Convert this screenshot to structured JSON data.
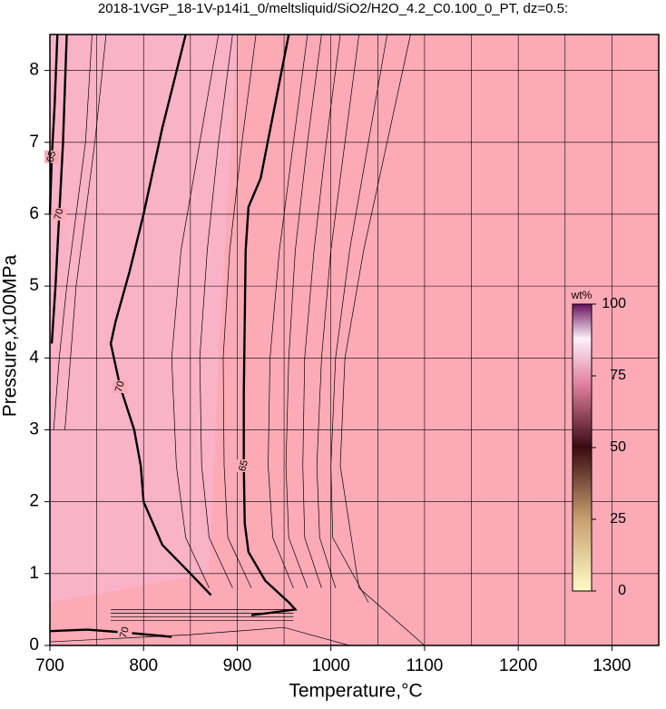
{
  "chart_data": {
    "type": "contour",
    "title": "2018-1VGP_18-1V-p14i1_0/meltsliquid/SiO2/H2O_4.2_C0.100_0_PT, dz=0.5:",
    "x_label": "Temperature,°C",
    "y_label": "Pressure,x100MPa",
    "xlim": [
      700,
      1350
    ],
    "ylim": [
      0,
      8.5
    ],
    "xticks": [
      700,
      800,
      900,
      1000,
      1100,
      1200,
      1300
    ],
    "yticks": [
      0,
      1,
      2,
      3,
      4,
      5,
      6,
      7,
      8
    ],
    "xgrid": [
      750,
      850,
      950,
      1050,
      1150,
      1250
    ],
    "grid": true,
    "color": "#fcaab6",
    "contours": [
      {
        "level": 70,
        "x": [
          845,
          820,
          800,
          785,
          770,
          765,
          775,
          790,
          797,
          800,
          820,
          850,
          872
        ],
        "y": [
          8.5,
          7.2,
          6.0,
          5.2,
          4.5,
          4.2,
          3.6,
          3.0,
          2.5,
          2.0,
          1.4,
          1.0,
          0.7
        ]
      },
      {
        "level": 65,
        "x": [
          955,
          940,
          925,
          912,
          909,
          908,
          907,
          907,
          908,
          912,
          930,
          955,
          962,
          915
        ],
        "y": [
          8.5,
          7.5,
          6.5,
          6.1,
          5.5,
          4.5,
          3.5,
          2.5,
          1.7,
          1.3,
          0.9,
          0.6,
          0.5,
          0.42
        ]
      },
      {
        "level": 70,
        "x": [
          718,
          714,
          710,
          706,
          702
        ],
        "y": [
          8.5,
          7.0,
          6.0,
          5.0,
          4.2
        ]
      },
      {
        "level": 65,
        "x": [
          708,
          705,
          702,
          700
        ],
        "y": [
          8.5,
          7.5,
          6.8,
          6.0
        ]
      },
      {
        "level": 70,
        "x": [
          700,
          740,
          780,
          830
        ],
        "y": [
          0.2,
          0.22,
          0.18,
          0.12
        ]
      },
      {
        "x": [
          745,
          738,
          728,
          718,
          710,
          704
        ],
        "y": [
          8.5,
          7.0,
          6.0,
          5.0,
          4.0,
          3.0
        ]
      },
      {
        "x": [
          760,
          748,
          738,
          728,
          722,
          716
        ],
        "y": [
          8.5,
          7.0,
          6.0,
          5.0,
          4.0,
          3.0
        ]
      },
      {
        "x": [
          880,
          860,
          840,
          830,
          835,
          845,
          870
        ],
        "y": [
          8.5,
          7.0,
          5.5,
          4.0,
          2.5,
          1.5,
          0.8
        ]
      },
      {
        "x": [
          895,
          880,
          868,
          860,
          862,
          870,
          895
        ],
        "y": [
          8.5,
          7.0,
          5.5,
          4.0,
          2.5,
          1.5,
          0.8
        ]
      },
      {
        "x": [
          920,
          905,
          892,
          885,
          886,
          890,
          915
        ],
        "y": [
          8.5,
          7.0,
          5.5,
          4.0,
          2.5,
          1.5,
          0.8
        ]
      },
      {
        "x": [
          975,
          960,
          945,
          935,
          933,
          938,
          960
        ],
        "y": [
          8.5,
          7.0,
          5.5,
          4.0,
          2.5,
          1.5,
          0.8
        ]
      },
      {
        "x": [
          990,
          975,
          962,
          955,
          952,
          955,
          975
        ],
        "y": [
          8.5,
          7.0,
          5.5,
          4.0,
          2.5,
          1.5,
          0.8
        ]
      },
      {
        "x": [
          1010,
          995,
          982,
          972,
          970,
          972,
          990
        ],
        "y": [
          8.5,
          7.0,
          5.5,
          4.0,
          2.5,
          1.5,
          0.8
        ]
      },
      {
        "x": [
          1030,
          1015,
          1000,
          990,
          985,
          988,
          1005
        ],
        "y": [
          8.5,
          7.0,
          5.5,
          4.0,
          2.5,
          1.5,
          0.8
        ]
      },
      {
        "x": [
          1060,
          1040,
          1020,
          1005,
          1000,
          1002,
          1040
        ],
        "y": [
          8.5,
          7.0,
          5.5,
          4.0,
          2.5,
          1.5,
          0.6
        ]
      },
      {
        "x": [
          1085,
          1060,
          1035,
          1015,
          1010,
          1030,
          1100
        ],
        "y": [
          8.5,
          7.0,
          5.5,
          4.0,
          2.5,
          0.8,
          0.0
        ]
      },
      {
        "x": [
          765,
          960
        ],
        "y": [
          0.35,
          0.35
        ]
      },
      {
        "x": [
          765,
          960
        ],
        "y": [
          0.4,
          0.4
        ]
      },
      {
        "x": [
          765,
          960
        ],
        "y": [
          0.45,
          0.45
        ]
      },
      {
        "x": [
          765,
          960
        ],
        "y": [
          0.5,
          0.5
        ]
      },
      {
        "x": [
          700,
          850,
          950,
          1020
        ],
        "y": [
          0.05,
          0.15,
          0.25,
          0.0
        ]
      }
    ],
    "colorbar": {
      "label": "wt%",
      "lim": [
        0,
        100
      ],
      "ticks": [
        0,
        25,
        50,
        75,
        100
      ]
    }
  }
}
